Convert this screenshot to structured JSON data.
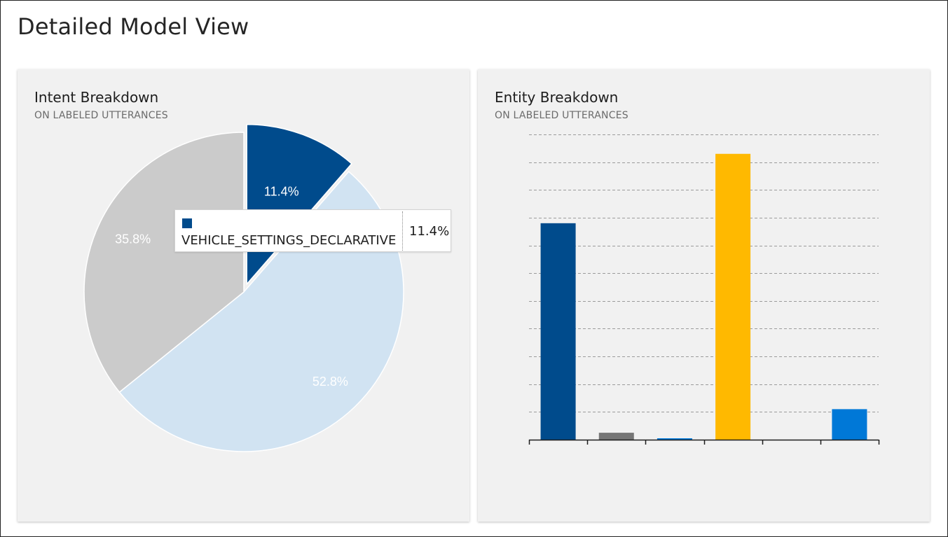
{
  "page": {
    "title": "Detailed Model View"
  },
  "intent_panel": {
    "title": "Intent Breakdown",
    "subtitle": "ON LABELED UTTERANCES"
  },
  "entity_panel": {
    "title": "Entity Breakdown",
    "subtitle": "ON LABELED UTTERANCES"
  },
  "tooltip": {
    "label": "VEHICLE_SETTINGS_DECLARATIVE",
    "value": "11.4%",
    "swatch_color": "#004b8c"
  },
  "chart_data": [
    {
      "type": "pie",
      "title": "Intent Breakdown",
      "subtitle": "ON LABELED UTTERANCES",
      "slices": [
        {
          "label": "VEHICLE_SETTINGS_DECLARATIVE",
          "value": 11.4,
          "display": "11.4%",
          "color": "#004b8c",
          "text_color": "#ffffff"
        },
        {
          "label": "",
          "value": 52.8,
          "display": "52.8%",
          "color": "#d1e3f2",
          "text_color": "#ffffff"
        },
        {
          "label": "",
          "value": 35.8,
          "display": "35.8%",
          "color": "#cbcbcb",
          "text_color": "#ffffff"
        }
      ]
    },
    {
      "type": "bar",
      "title": "Entity Breakdown",
      "subtitle": "ON LABELED UTTERANCES",
      "categories": [
        "",
        "",
        "",
        "",
        "",
        ""
      ],
      "values": [
        7.8,
        0.25,
        0.05,
        10.3,
        0,
        1.1
      ],
      "colors": [
        "#004b8c",
        "#767676",
        "#0078d7",
        "#ffb900",
        "#cccccc",
        "#0078d7"
      ],
      "ylim": [
        0,
        11
      ],
      "grid": true,
      "grid_style": "dashed"
    }
  ]
}
